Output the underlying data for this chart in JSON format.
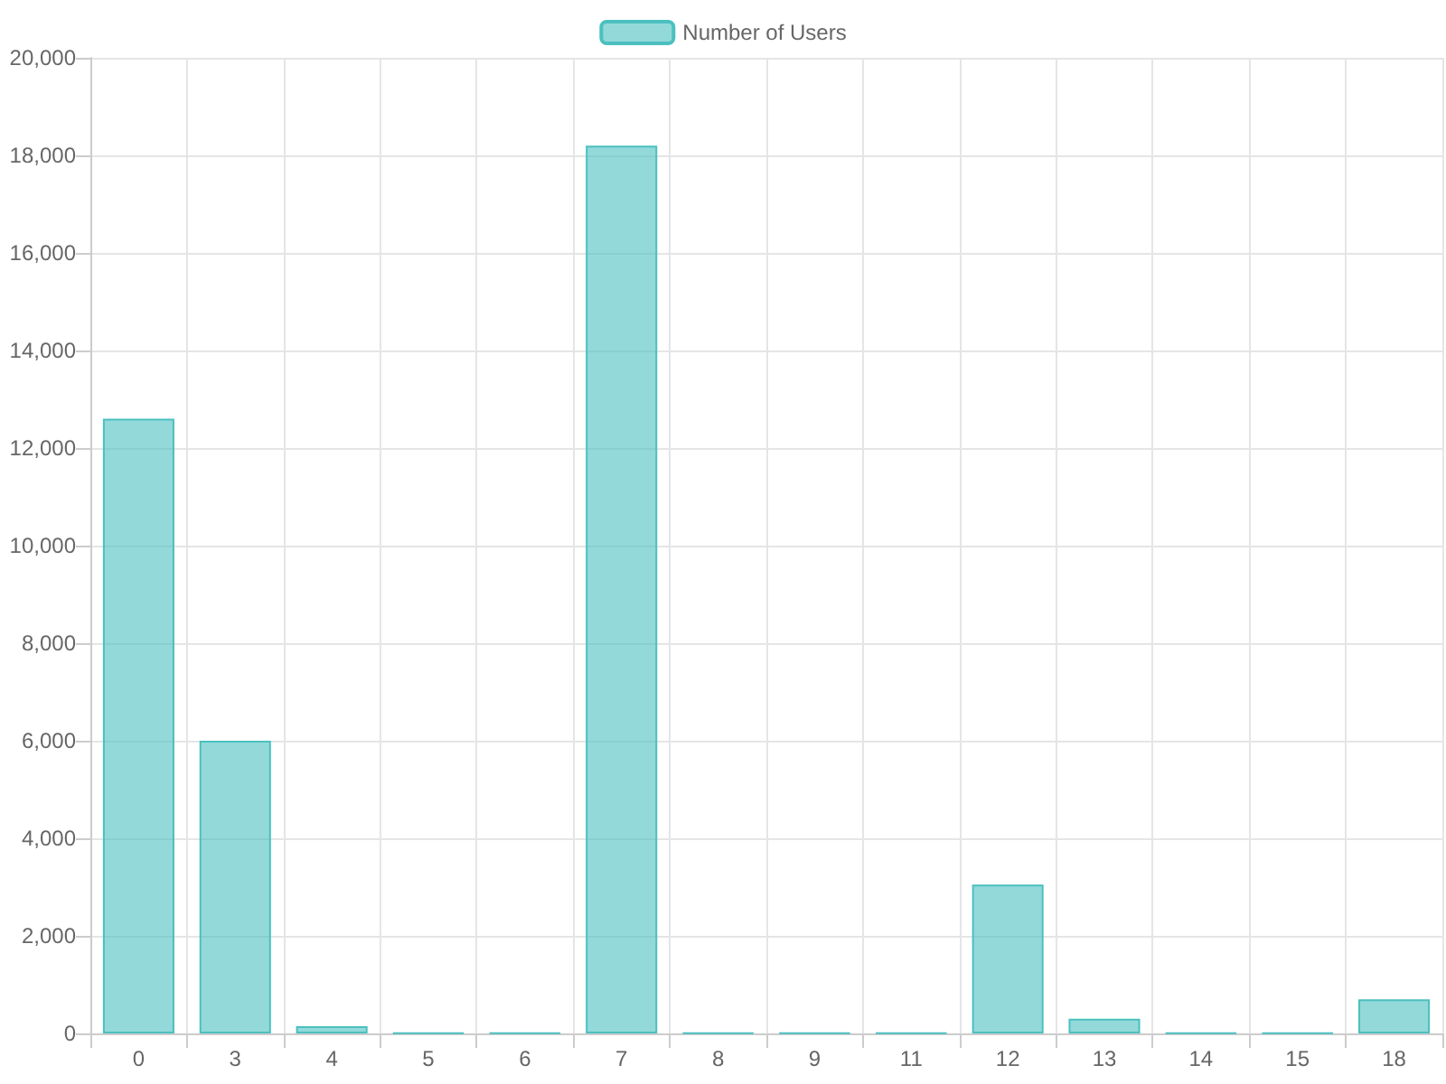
{
  "chart_data": {
    "type": "bar",
    "categories": [
      "0",
      "3",
      "4",
      "5",
      "6",
      "7",
      "8",
      "9",
      "11",
      "12",
      "13",
      "14",
      "15",
      "18"
    ],
    "series": [
      {
        "name": "Number of Users",
        "color": "#4bc0c0",
        "values": [
          12600,
          6000,
          150,
          10,
          10,
          18200,
          10,
          10,
          10,
          3050,
          300,
          10,
          10,
          700
        ]
      }
    ],
    "ylim": [
      0,
      20000
    ],
    "yticks": [
      {
        "value": 0,
        "label": "0"
      },
      {
        "value": 2000,
        "label": "2,000"
      },
      {
        "value": 4000,
        "label": "4,000"
      },
      {
        "value": 6000,
        "label": "6,000"
      },
      {
        "value": 8000,
        "label": "8,000"
      },
      {
        "value": 10000,
        "label": "10,000"
      },
      {
        "value": 12000,
        "label": "12,000"
      },
      {
        "value": 14000,
        "label": "14,000"
      },
      {
        "value": 16000,
        "label": "16,000"
      },
      {
        "value": 18000,
        "label": "18,000"
      },
      {
        "value": 20000,
        "label": "20,000"
      }
    ],
    "grid": true,
    "legend": "top"
  }
}
